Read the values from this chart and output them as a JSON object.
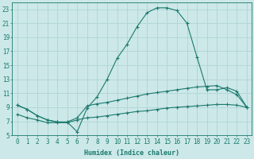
{
  "xlabel": "Humidex (Indice chaleur)",
  "ylabel": "",
  "background_color": "#cce8e8",
  "grid_color": "#b0d4d4",
  "line_color": "#1a7a6e",
  "xlim": [
    -0.5,
    23.5
  ],
  "ylim": [
    5,
    24
  ],
  "yticks": [
    5,
    7,
    9,
    11,
    13,
    15,
    17,
    19,
    21,
    23
  ],
  "xticks": [
    0,
    1,
    2,
    3,
    4,
    5,
    6,
    7,
    8,
    9,
    10,
    11,
    12,
    13,
    14,
    15,
    16,
    17,
    18,
    19,
    20,
    21,
    22,
    23
  ],
  "series1_x": [
    0,
    1,
    2,
    3,
    4,
    5,
    6,
    7,
    8,
    9,
    10,
    11,
    12,
    13,
    14,
    15,
    16,
    17,
    18,
    19,
    20,
    21,
    22,
    23
  ],
  "series1_y": [
    9.3,
    8.7,
    7.8,
    7.2,
    6.9,
    6.9,
    5.5,
    8.9,
    10.5,
    13.0,
    16.0,
    18.0,
    20.5,
    22.5,
    23.2,
    23.2,
    22.8,
    21.0,
    16.2,
    11.5,
    11.5,
    11.8,
    11.3,
    9.0
  ],
  "series2_x": [
    0,
    1,
    2,
    3,
    4,
    5,
    6,
    7,
    8,
    9,
    10,
    11,
    12,
    13,
    14,
    15,
    16,
    17,
    18,
    19,
    20,
    21,
    22,
    23
  ],
  "series2_y": [
    9.3,
    8.7,
    7.8,
    7.2,
    6.9,
    6.9,
    7.5,
    9.2,
    9.5,
    9.7,
    10.0,
    10.3,
    10.6,
    10.9,
    11.1,
    11.3,
    11.5,
    11.7,
    11.9,
    12.0,
    12.1,
    11.5,
    10.8,
    9.0
  ],
  "series3_x": [
    0,
    1,
    2,
    3,
    4,
    5,
    6,
    7,
    8,
    9,
    10,
    11,
    12,
    13,
    14,
    15,
    16,
    17,
    18,
    19,
    20,
    21,
    22,
    23
  ],
  "series3_y": [
    8.0,
    7.5,
    7.2,
    6.8,
    6.8,
    6.8,
    7.2,
    7.5,
    7.6,
    7.8,
    8.0,
    8.2,
    8.4,
    8.5,
    8.7,
    8.9,
    9.0,
    9.1,
    9.2,
    9.3,
    9.4,
    9.4,
    9.3,
    9.0
  ]
}
